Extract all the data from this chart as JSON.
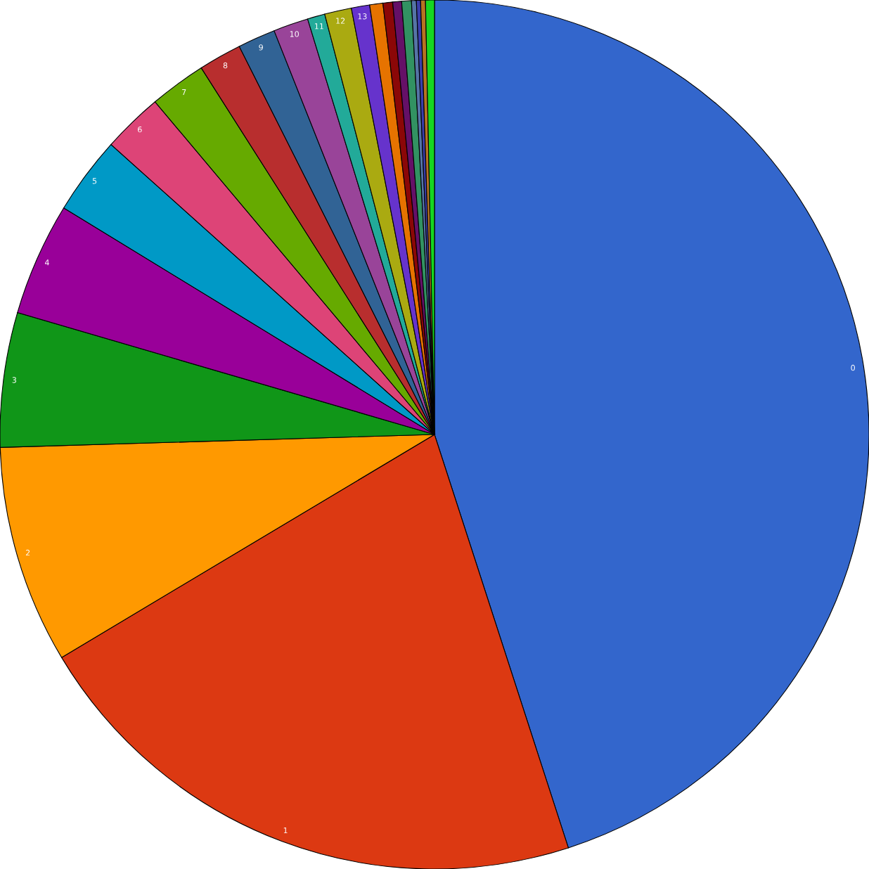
{
  "chart_data": {
    "type": "pie",
    "categories": [
      "0",
      "1",
      "2",
      "3",
      "4",
      "5",
      "6",
      "7",
      "8",
      "9",
      "10",
      "11",
      "12",
      "13",
      null,
      null,
      null,
      null,
      null,
      null,
      null,
      null
    ],
    "values": [
      45.0,
      21.4,
      8.1,
      5.0,
      4.2,
      2.9,
      2.25,
      2.1,
      1.6,
      1.4,
      1.3,
      0.65,
      1.0,
      0.68,
      0.49,
      0.36,
      0.33,
      0.36,
      0.18,
      0.155,
      0.18,
      0.33
    ],
    "colors": [
      "#3366cc",
      "#dc3912",
      "#ff9900",
      "#109618",
      "#990099",
      "#0099c6",
      "#dd4477",
      "#66aa00",
      "#b82e2e",
      "#316395",
      "#994499",
      "#22aa99",
      "#aaaa11",
      "#6633cc",
      "#e67300",
      "#8b0707",
      "#651067",
      "#329262",
      "#5574a6",
      "#3b3eac",
      "#b77322",
      "#16d620"
    ]
  }
}
